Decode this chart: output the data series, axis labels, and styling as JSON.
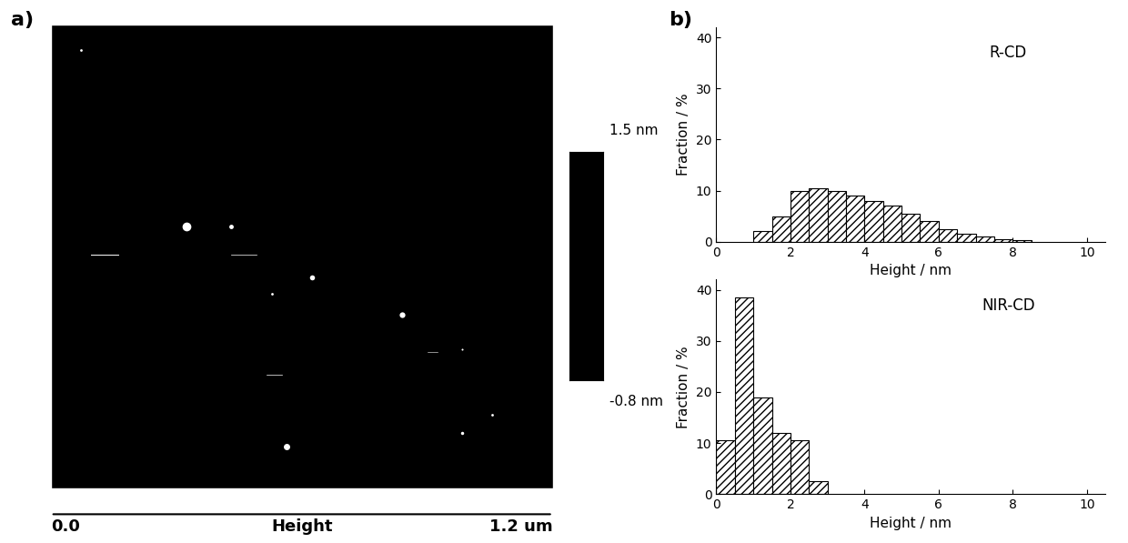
{
  "rcd_bins": [
    1.0,
    1.5,
    2.0,
    2.5,
    3.0,
    3.5,
    4.0,
    4.5,
    5.0,
    5.5,
    6.0,
    6.5,
    7.0,
    7.5,
    8.0
  ],
  "rcd_values": [
    2.0,
    5.0,
    10.0,
    10.5,
    10.0,
    9.0,
    8.0,
    7.0,
    5.5,
    4.0,
    2.5,
    1.5,
    1.0,
    0.5,
    0.3
  ],
  "nircd_bins": [
    0.0,
    0.5,
    1.0,
    1.5,
    2.0,
    2.5
  ],
  "nircd_values": [
    10.5,
    38.5,
    19.0,
    12.0,
    10.5,
    2.5
  ],
  "bin_width": 0.5,
  "xlim": [
    0,
    10.5
  ],
  "ylim": [
    0,
    42
  ],
  "yticks": [
    0,
    10,
    20,
    30,
    40
  ],
  "xticks": [
    0,
    2,
    4,
    6,
    8,
    10
  ],
  "xlabel": "Height / nm",
  "ylabel": "Fraction / %",
  "rcd_label": "R-CD",
  "nircd_label": "NIR-CD",
  "hatch_pattern": "////",
  "bar_facecolor": "white",
  "bar_edgecolor": "black",
  "background_color": "white",
  "afm_bg_color": "black",
  "colorbar_top_label": "1.5 nm",
  "colorbar_bot_label": "-0.8 nm",
  "scalebar_left": "0.0",
  "scalebar_mid": "Height",
  "scalebar_right": "1.2 um",
  "panel_a_label": "a)",
  "panel_b_label": "b)"
}
